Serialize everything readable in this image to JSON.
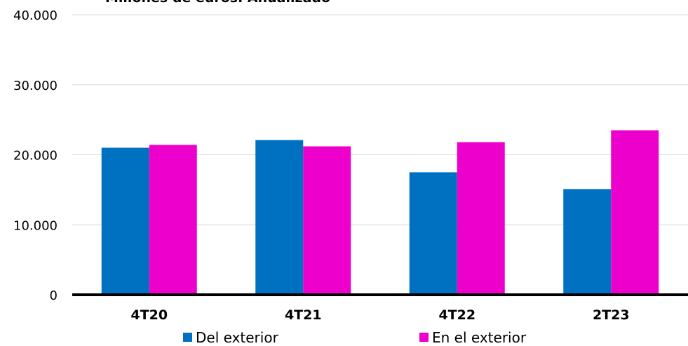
{
  "chart_data": {
    "type": "bar",
    "title": "Millones de euros. Anualizado",
    "categories": [
      "4T20",
      "4T21",
      "4T22",
      "2T23"
    ],
    "series": [
      {
        "name": "Del exterior",
        "color": "#0070C0",
        "values": [
          21000,
          22100,
          17500,
          15100
        ]
      },
      {
        "name": "En el exterior",
        "color": "#EE00CC",
        "values": [
          21400,
          21200,
          21800,
          23500
        ]
      }
    ],
    "y_ticks": [
      "0",
      "10.000",
      "20.000",
      "30.000",
      "40.000"
    ],
    "ylim": [
      0,
      40000
    ],
    "grid": true,
    "legend_position": "bottom"
  }
}
